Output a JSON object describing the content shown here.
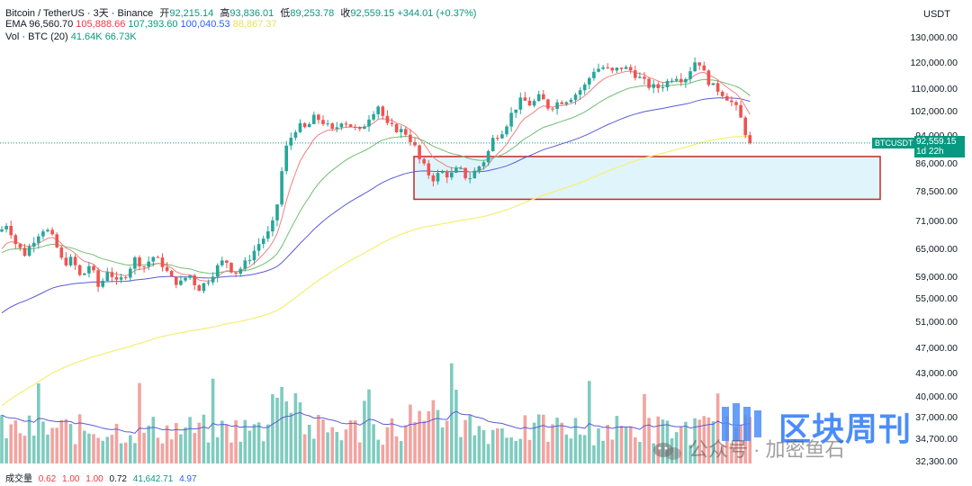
{
  "legend": {
    "symbol": "Bitcoin / TetherUS · 3天 · Binance",
    "open_label": "开",
    "open": "92,215.14",
    "high_label": "高",
    "high": "93,836.01",
    "low_label": "低",
    "low": "89,253.78",
    "close_label": "收",
    "close": "92,559.15",
    "change": "+344.01 (+0.37%)",
    "ema_label": "EMA",
    "ema_values": [
      "96,560.70",
      "105,888.66",
      "107,393.60",
      "100,040.53",
      "88,867.37"
    ],
    "ema_colors": [
      "#131722",
      "#f23645",
      "#089981",
      "#2962ff",
      "#e8e060"
    ],
    "vol_label": "Vol · BTC (20)",
    "vol_values": [
      "41.64K",
      "66.73K"
    ]
  },
  "volume_legend": {
    "label": "成交量",
    "values": [
      "0.62",
      "1.00",
      "1.00",
      "0.72",
      "41,642.71",
      "4.97"
    ]
  },
  "axis": {
    "unit": "USDT",
    "ticks": [
      "130,000.00",
      "120,000.00",
      "110,000.00",
      "102,000.00",
      "94,000.00",
      "86,000.00",
      "78,500.00",
      "71,000.00",
      "65,000.00",
      "59,000.00",
      "55,000.00",
      "51,000.00",
      "47,000.00",
      "43,000.00",
      "40,000.00",
      "37,000.00",
      "34,700.00",
      "32,300.00"
    ]
  },
  "badges": {
    "symbol": "BTCUSDT",
    "price": "92,559.15",
    "countdown": "1d 22h"
  },
  "watermark": {
    "title": "区块周刊",
    "subtitle": "公众号 · 加密鱼石"
  },
  "colors": {
    "up": "#26a69a",
    "down": "#ef5350",
    "ema1": "#f08080",
    "ema2": "#6fbf73",
    "ema3": "#5b5bd6",
    "ema4": "#f5f07a",
    "vol_up": "#7fcbbf",
    "vol_down": "#f2a3a0",
    "zone_fill": "#e0f4fb",
    "zone_border": "#c62828",
    "price_line": "#089981"
  },
  "chart_data": {
    "type": "candlestick",
    "title": "Bitcoin / TetherUS · 3天 · Binance",
    "ylabel": "USDT",
    "y_axis_scale": "log",
    "ylim": [
      31500,
      136000
    ],
    "last_price": 92559.15,
    "support_zone": [
      76800,
      88500
    ],
    "ema_series": [
      "EMA 1",
      "EMA 2",
      "EMA 3",
      "EMA 4"
    ],
    "price_path": [
      [
        0,
        69000
      ],
      [
        8,
        71000
      ],
      [
        18,
        66000
      ],
      [
        28,
        64000
      ],
      [
        40,
        68000
      ],
      [
        50,
        70000
      ],
      [
        60,
        67000
      ],
      [
        70,
        62000
      ],
      [
        80,
        63000
      ],
      [
        90,
        59000
      ],
      [
        100,
        62000
      ],
      [
        110,
        57000
      ],
      [
        120,
        61000
      ],
      [
        130,
        58000
      ],
      [
        140,
        60000
      ],
      [
        150,
        63000
      ],
      [
        160,
        61500
      ],
      [
        170,
        63500
      ],
      [
        180,
        62000
      ],
      [
        190,
        59000
      ],
      [
        200,
        58000
      ],
      [
        210,
        60000
      ],
      [
        220,
        57000
      ],
      [
        230,
        58500
      ],
      [
        240,
        61000
      ],
      [
        250,
        63000
      ],
      [
        260,
        60000
      ],
      [
        270,
        61500
      ],
      [
        280,
        64000
      ],
      [
        290,
        67000
      ],
      [
        300,
        69000
      ],
      [
        305,
        72000
      ],
      [
        310,
        78000
      ],
      [
        315,
        88000
      ],
      [
        320,
        93000
      ],
      [
        325,
        95000
      ],
      [
        330,
        98000
      ],
      [
        340,
        97000
      ],
      [
        350,
        101000
      ],
      [
        360,
        99000
      ],
      [
        370,
        96000
      ],
      [
        380,
        100000
      ],
      [
        390,
        98000
      ],
      [
        400,
        96000
      ],
      [
        410,
        101000
      ],
      [
        420,
        105000
      ],
      [
        430,
        98000
      ],
      [
        440,
        97000
      ],
      [
        450,
        96000
      ],
      [
        460,
        92000
      ],
      [
        465,
        88000
      ],
      [
        470,
        86000
      ],
      [
        480,
        82000
      ],
      [
        490,
        84000
      ],
      [
        500,
        83000
      ],
      [
        510,
        85000
      ],
      [
        520,
        82000
      ],
      [
        530,
        85000
      ],
      [
        540,
        88000
      ],
      [
        548,
        94000
      ],
      [
        560,
        97000
      ],
      [
        570,
        103000
      ],
      [
        580,
        107000
      ],
      [
        590,
        105000
      ],
      [
        600,
        108000
      ],
      [
        610,
        104000
      ],
      [
        620,
        106000
      ],
      [
        630,
        107000
      ],
      [
        640,
        109000
      ],
      [
        650,
        112000
      ],
      [
        660,
        118000
      ],
      [
        670,
        119000
      ],
      [
        680,
        117000
      ],
      [
        690,
        119000
      ],
      [
        700,
        118000
      ],
      [
        710,
        115000
      ],
      [
        720,
        112000
      ],
      [
        730,
        111000
      ],
      [
        740,
        113000
      ],
      [
        750,
        116000
      ],
      [
        760,
        114000
      ],
      [
        770,
        120000
      ],
      [
        775,
        123000
      ],
      [
        780,
        118000
      ],
      [
        790,
        112000
      ],
      [
        800,
        110000
      ],
      [
        810,
        107000
      ],
      [
        820,
        103000
      ],
      [
        828,
        96000
      ],
      [
        834,
        92559
      ]
    ]
  }
}
